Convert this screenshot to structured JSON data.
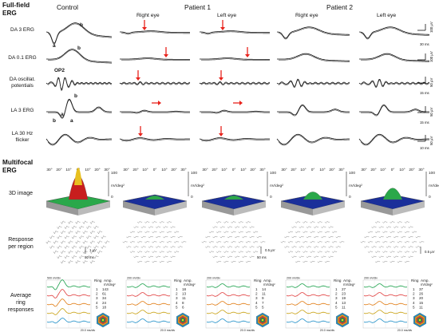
{
  "sections": {
    "fullfield_line1": "Full-field",
    "fullfield_line2": "ERG",
    "multifocal_line1": "Multifocal",
    "multifocal_line2": "ERG"
  },
  "columns": {
    "control": "Control",
    "patient1": "Patient 1",
    "patient2": "Patient 2",
    "right_eye": "Right eye",
    "left_eye": "Left eye"
  },
  "ffrows": {
    "da3": "DA 3 ERG",
    "da01": "DA 0.1 ERG",
    "osc1": "DA oscillat.",
    "osc2": "potentials",
    "la3": "LA 3 ERG",
    "la30a": "LA 30 Hz",
    "la30b": "flicker"
  },
  "mfrows": {
    "image3d": "3D image",
    "resp1": "Response",
    "resp2": "per region",
    "avg1": "Average",
    "avg2": "ring",
    "avg3": "responses"
  },
  "wave_labels": {
    "a": "a",
    "b": "b",
    "op2": "OP2"
  },
  "scale_bars": {
    "uv100": "100 µV",
    "ms30": "30 ms",
    "uv50": "50 µV",
    "ms15": "15 ms",
    "ms10": "10 ms",
    "uv1": "1 µV",
    "uv05": "0.5 µV",
    "ms50": "50 ms"
  },
  "degree_ticks": [
    "30°",
    "20°",
    "10°",
    "0°",
    "10°",
    "20°",
    "30°"
  ],
  "surface_scale": {
    "top": "100",
    "bottom": "0",
    "unit": "nV/deg²"
  },
  "ring_panels": [
    {
      "header_ring": "Ring",
      "header_amp": "Amp.",
      "header_unit": "nV/deg²",
      "rows": [
        [
          "1",
          "143"
        ],
        [
          "2",
          "61"
        ],
        [
          "3",
          "34"
        ],
        [
          "4",
          "24"
        ],
        [
          "5",
          "18"
        ]
      ],
      "top": "500 nV/div",
      "bottom": "20.0 ms/div"
    },
    {
      "header_ring": "Ring",
      "header_amp": "Amp.",
      "header_unit": "nV/deg²",
      "rows": [
        [
          "1",
          "18"
        ],
        [
          "2",
          "13"
        ],
        [
          "3",
          "11"
        ],
        [
          "4",
          "8"
        ],
        [
          "5",
          "6"
        ]
      ],
      "top": "200 nV/div",
      "bottom": "20.0 ms/div"
    },
    {
      "header_ring": "Ring",
      "header_amp": "Amp.",
      "header_unit": "nV/deg²",
      "rows": [
        [
          "1",
          "14"
        ],
        [
          "2",
          "11"
        ],
        [
          "3",
          "9"
        ],
        [
          "4",
          "7"
        ],
        [
          "5",
          "5"
        ]
      ],
      "top": "200 nV/div",
      "bottom": "20.0 ms/div"
    },
    {
      "header_ring": "Ring",
      "header_amp": "Amp.",
      "header_unit": "nV/deg²",
      "rows": [
        [
          "1",
          "27"
        ],
        [
          "2",
          "23"
        ],
        [
          "3",
          "19"
        ],
        [
          "4",
          "13"
        ],
        [
          "5",
          "11"
        ]
      ],
      "top": "200 nV/div",
      "bottom": "20.0 ms/div"
    },
    {
      "header_ring": "Ring",
      "header_amp": "Amp.",
      "header_unit": "nV/deg²",
      "rows": [
        [
          "1",
          "37"
        ],
        [
          "2",
          "26"
        ],
        [
          "3",
          "20"
        ],
        [
          "4",
          "15"
        ],
        [
          "5",
          "11"
        ]
      ],
      "top": "200 nV/div",
      "bottom": "20.0 ms/div"
    }
  ],
  "colors": {
    "arrow": "#e8231c",
    "ring1": "#e8a020",
    "ring2": "#1aa04a",
    "ring3": "#e03c3c",
    "ring4": "#e07a10",
    "ring5": "#1f8fc8",
    "surface_high": "#c81e1e",
    "surface_mid": "#2aa84a",
    "surface_low": "#1a2f9a"
  }
}
